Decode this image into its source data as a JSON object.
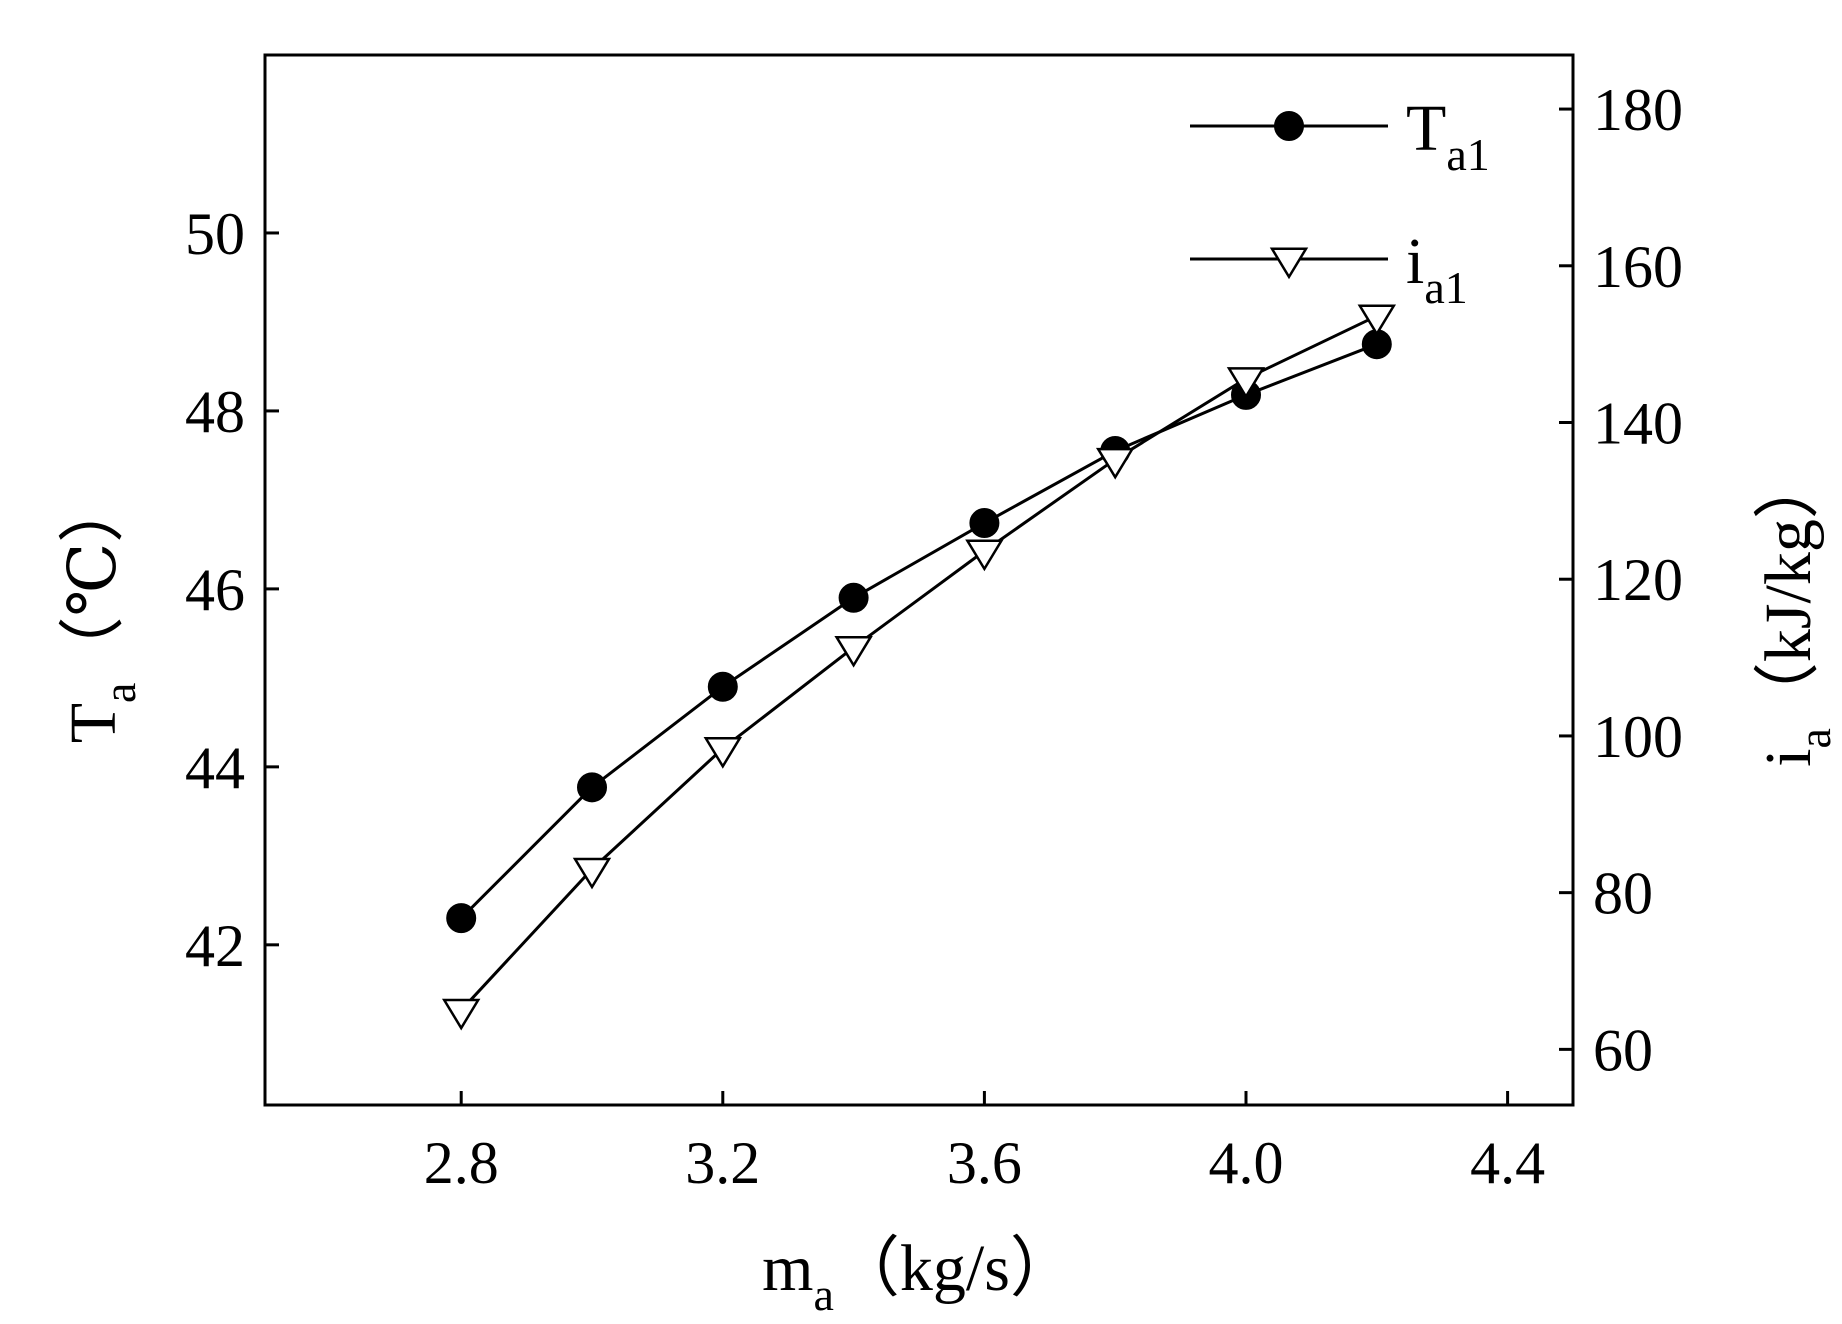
{
  "chart_data": {
    "type": "line",
    "x": [
      2.8,
      3.0,
      3.2,
      3.4,
      3.6,
      3.8,
      4.0,
      4.2
    ],
    "xlim": [
      2.5,
      4.5
    ],
    "x_ticks": [
      2.8,
      3.2,
      3.6,
      4.0,
      4.4
    ],
    "x_tick_labels": [
      "2.8",
      "3.2",
      "3.6",
      "4.0",
      "4.4"
    ],
    "xlabel": {
      "main": "m",
      "sub": "a",
      "rest": "（kg/s）"
    },
    "ylim_left": [
      40.2,
      52.0
    ],
    "y_left_ticks": [
      42,
      44,
      46,
      48,
      50
    ],
    "y_left_tick_labels": [
      "42",
      "44",
      "46",
      "48",
      "50"
    ],
    "ylabel_left": {
      "main": "T",
      "sub": "a",
      "rest": "（℃）"
    },
    "ylim_right": [
      52.9,
      186.9
    ],
    "y_right_ticks": [
      60,
      80,
      100,
      120,
      140,
      160,
      180
    ],
    "y_right_tick_labels": [
      "60",
      "80",
      "100",
      "120",
      "140",
      "160",
      "180"
    ],
    "ylabel_right": {
      "main": "i",
      "sub": "a",
      "rest": "（kJ/kg）"
    },
    "series": [
      {
        "name": "T_a1",
        "label_main": "T",
        "label_sub": "a1",
        "axis": "left",
        "marker": "filled-circle",
        "values": [
          42.3,
          43.77,
          44.9,
          45.9,
          46.74,
          47.55,
          48.18,
          48.75
        ]
      },
      {
        "name": "i_a1",
        "label_main": "i",
        "label_sub": "a1",
        "axis": "right",
        "marker": "open-triangle-down",
        "values": [
          65.0,
          83.0,
          98.4,
          111.3,
          123.6,
          135.3,
          145.6,
          153.6
        ]
      }
    ],
    "legend_position": "top-right",
    "grid": false
  }
}
